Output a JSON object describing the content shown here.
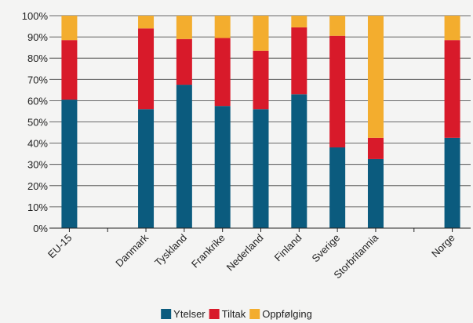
{
  "chart_data": {
    "type": "bar",
    "stacked": true,
    "normalized": true,
    "categories": [
      "EU-15",
      "",
      "Danmark",
      "Tyskland",
      "Frankrike",
      "Nederland",
      "Finland",
      "Sverige",
      "Storbritannia",
      "",
      "Norge"
    ],
    "series": [
      {
        "name": "Ytelser",
        "color": "#0b5b7e",
        "values": [
          60.5,
          null,
          56,
          67.5,
          57.5,
          56,
          63,
          38,
          32.5,
          null,
          42.5
        ]
      },
      {
        "name": "Tiltak",
        "color": "#d81a2a",
        "values": [
          28,
          null,
          38,
          21.5,
          32,
          27.5,
          31.5,
          52.5,
          10,
          null,
          46
        ]
      },
      {
        "name": "Oppfølging",
        "color": "#f3ad2e",
        "values": [
          11.5,
          null,
          6,
          11,
          10.5,
          16.5,
          5.5,
          9.5,
          57.5,
          null,
          11.5
        ]
      }
    ],
    "yticks": [
      "0%",
      "10%",
      "20%",
      "30%",
      "40%",
      "50%",
      "60%",
      "70%",
      "80%",
      "90%",
      "100%"
    ],
    "ylim": [
      0,
      100
    ],
    "grid": true,
    "legend_position": "bottom"
  }
}
